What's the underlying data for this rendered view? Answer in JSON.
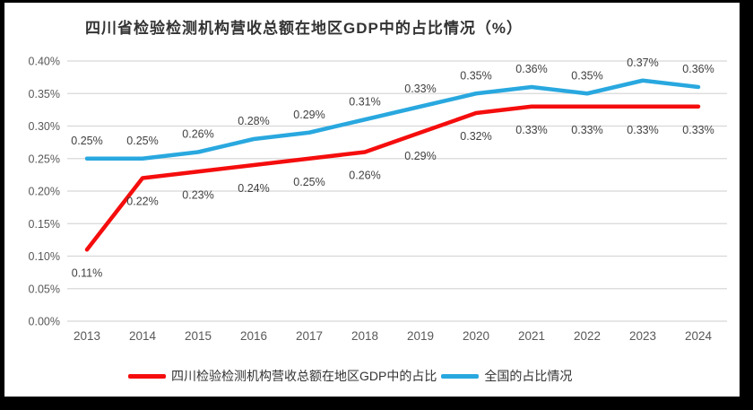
{
  "window": {
    "frame_color": "#000000",
    "canvas_color": "#ffffff"
  },
  "chart_data": {
    "type": "line",
    "title": "四川省检验检测机构营收总额在地区GDP中的占比情况（%）",
    "categories": [
      "2013",
      "2014",
      "2015",
      "2016",
      "2017",
      "2018",
      "2019",
      "2020",
      "2021",
      "2022",
      "2023",
      "2024"
    ],
    "series": [
      {
        "name": "四川检验检测机构营收总额在地区GDP中的占比",
        "color": "#F50D0D",
        "values": [
          0.11,
          0.22,
          0.23,
          0.24,
          0.25,
          0.26,
          0.29,
          0.32,
          0.33,
          0.33,
          0.33,
          0.33
        ],
        "labels": [
          "0.11%",
          "0.22%",
          "0.23%",
          "0.24%",
          "0.25%",
          "0.26%",
          "0.29%",
          "0.32%",
          "0.33%",
          "0.33%",
          "0.33%",
          "0.33%"
        ],
        "label_position": "below"
      },
      {
        "name": "全国的占比情况",
        "color": "#29A8DF",
        "values": [
          0.25,
          0.25,
          0.26,
          0.28,
          0.29,
          0.31,
          0.33,
          0.35,
          0.36,
          0.35,
          0.37,
          0.36
        ],
        "labels": [
          "0.25%",
          "0.25%",
          "0.26%",
          "0.28%",
          "0.29%",
          "0.31%",
          "0.33%",
          "0.35%",
          "0.36%",
          "0.35%",
          "0.37%",
          "0.36%"
        ],
        "label_position": "above"
      }
    ],
    "y_axis": {
      "min": 0,
      "max": 0.4,
      "step": 0.05,
      "ticks": [
        "0.00%",
        "0.05%",
        "0.10%",
        "0.15%",
        "0.20%",
        "0.25%",
        "0.30%",
        "0.35%",
        "0.40%"
      ]
    },
    "xlabel": "",
    "ylabel": "",
    "grid": true,
    "legend_position": "bottom"
  },
  "colors": {
    "gridline": "#D8D8D8",
    "axis_text": "#595959",
    "data_label": "#404040",
    "title_text": "#333333",
    "legend_text": "#333333"
  }
}
